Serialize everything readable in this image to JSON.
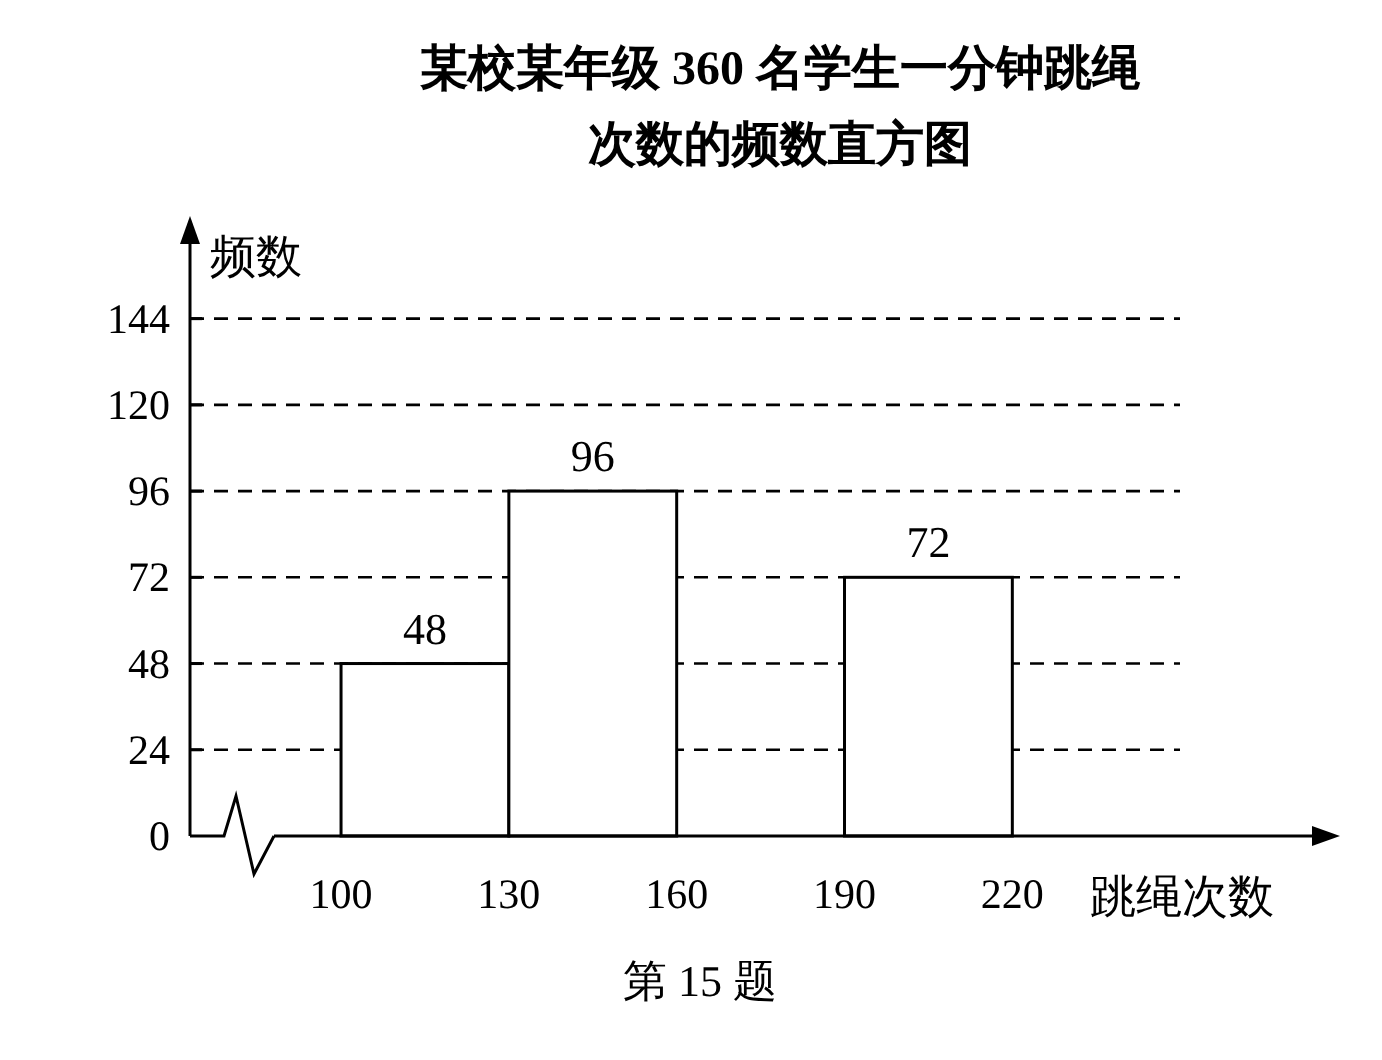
{
  "chart_data": {
    "type": "histogram",
    "title": "某校某年级 360 名学生一分钟跳绳次数的频数直方图",
    "ylabel": "频数",
    "xlabel": "跳绳次数",
    "annotations": [
      "第 15 题"
    ],
    "bins": [
      100,
      130,
      160,
      190,
      220
    ],
    "values": [
      48,
      96,
      null,
      72
    ],
    "color": "#ffffff",
    "xlim": [
      73,
      275
    ],
    "xticks": [
      100,
      130,
      160,
      190,
      220
    ],
    "ylim": [
      0,
      167
    ],
    "yticks": [
      0,
      24,
      48,
      72,
      96,
      120,
      144
    ],
    "grid": "y",
    "data_labels": true
  }
}
